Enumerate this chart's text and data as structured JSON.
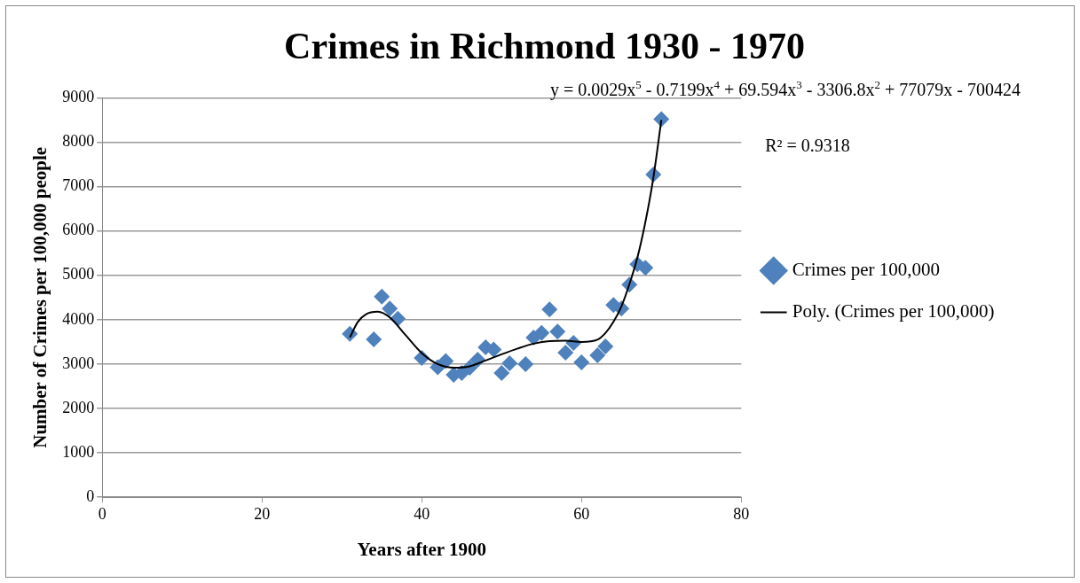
{
  "chart_data": {
    "type": "scatter",
    "title": "Crimes in Richmond 1930 - 1970",
    "xlabel": "Years after 1900",
    "ylabel": "Number of Crimes per 100,000 people",
    "xlim": [
      0,
      80
    ],
    "xticks": [
      0,
      20,
      40,
      60,
      80
    ],
    "ylim": [
      0,
      9000
    ],
    "yticks": [
      0,
      1000,
      2000,
      3000,
      4000,
      5000,
      6000,
      7000,
      8000,
      9000
    ],
    "grid": "y",
    "legend": "right",
    "marker": "diamond",
    "annotations": [
      "y = 0.0029x$^{5}$ - 0.7199x$^{4}$ + 69.594x$^{3}$ - 3306.8x$^{2}$ + 77079x - 700424",
      "R² = 0.9318"
    ],
    "series": [
      {
        "name": "Crimes per 100,000",
        "type": "scatter",
        "color": "#4f81bd",
        "x": [
          31,
          34,
          35,
          36,
          37,
          40,
          42,
          43,
          44,
          45,
          46,
          47,
          48,
          49,
          50,
          51,
          53,
          54,
          55,
          56,
          57,
          58,
          59,
          60,
          62,
          63,
          64,
          65,
          66,
          67,
          68,
          69,
          70
        ],
        "values": [
          3680,
          3560,
          4520,
          4250,
          4020,
          3140,
          2930,
          3070,
          2760,
          2800,
          2920,
          3100,
          3380,
          3330,
          2800,
          3020,
          3000,
          3600,
          3700,
          4230,
          3730,
          3260,
          3480,
          3040,
          3200,
          3400,
          4330,
          4250,
          4790,
          5250,
          5170,
          7270,
          8520
        ]
      },
      {
        "name": "Poly. (Crimes per 100,000)",
        "type": "line",
        "marker": "none",
        "color": "#000000",
        "x": [
          31,
          32,
          33,
          34.5,
          36,
          38,
          40,
          42,
          44,
          46,
          48,
          50,
          52,
          54,
          56,
          58,
          60,
          62,
          63,
          64,
          65,
          66,
          67,
          68,
          69,
          70
        ],
        "values": [
          3600,
          3950,
          4120,
          4180,
          4050,
          3650,
          3250,
          3000,
          2920,
          2950,
          3080,
          3220,
          3350,
          3460,
          3520,
          3530,
          3500,
          3550,
          3700,
          3950,
          4300,
          4800,
          5400,
          6200,
          7200,
          8500
        ]
      }
    ]
  }
}
